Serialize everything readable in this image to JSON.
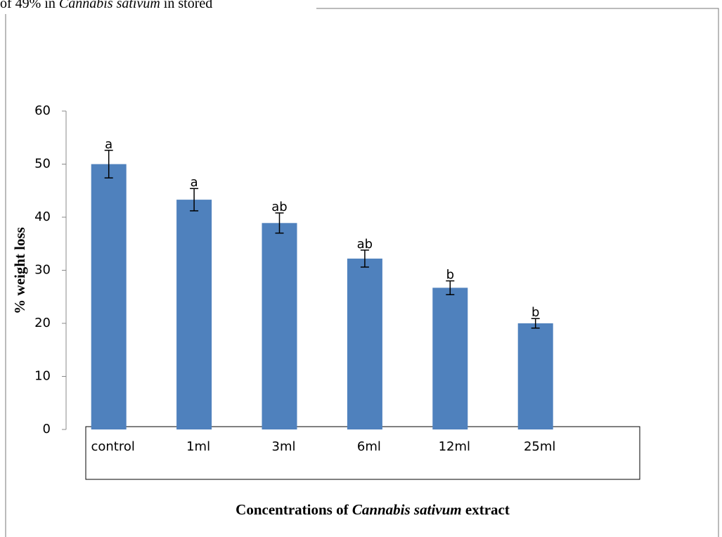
{
  "chart_data": {
    "type": "bar",
    "header_text": [
      "of 49% in ",
      "Cannabis sativum",
      " in stored"
    ],
    "x_label": [
      "Concentrations of ",
      "Cannabis sativum",
      " extract"
    ],
    "y_label": "% weight loss",
    "categories": [
      "control",
      "1ml",
      "3ml",
      "6ml",
      "12ml",
      "25ml"
    ],
    "values": [
      50,
      43.3,
      38.9,
      32.2,
      26.7,
      20
    ],
    "errors": [
      2.6,
      2.1,
      1.9,
      1.6,
      1.3,
      0.9
    ],
    "annotations": [
      "a",
      "a",
      "ab",
      "ab",
      "b",
      "b"
    ],
    "color": "#4f81bd",
    "ylim": [
      0,
      60
    ],
    "yticks": [
      0,
      10,
      20,
      30,
      40,
      50,
      60
    ],
    "grid": false
  }
}
